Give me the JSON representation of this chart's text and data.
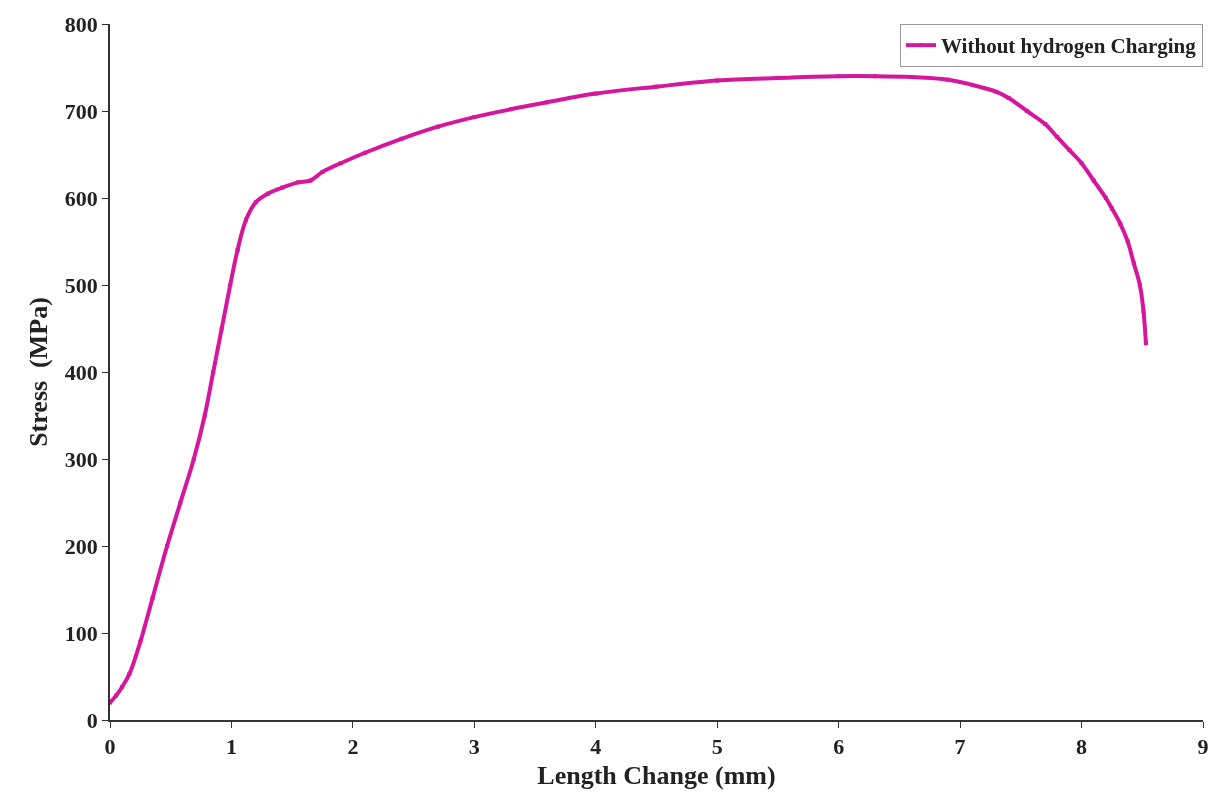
{
  "chart_data": {
    "type": "line",
    "xlabel": "Length Change (mm)",
    "ylabel": "Stress  (MPa)",
    "xlim": [
      0,
      9
    ],
    "xticks": [
      0,
      1,
      2,
      3,
      4,
      5,
      6,
      7,
      8,
      9
    ],
    "ylim": [
      0,
      800
    ],
    "yticks": [
      0,
      100,
      200,
      300,
      400,
      500,
      600,
      700,
      800
    ],
    "legend": "top right",
    "marker": "square",
    "line_style": "solid",
    "series": [
      {
        "name": "Without hydrogen Charging",
        "color": "#d4179c",
        "x": [
          0,
          0.05,
          0.1,
          0.16,
          0.25,
          0.35,
          0.47,
          0.58,
          0.69,
          0.78,
          0.85,
          0.92,
          0.99,
          1.05,
          1.12,
          1.2,
          1.3,
          1.42,
          1.55,
          1.65,
          1.75,
          1.9,
          2.1,
          2.4,
          2.7,
          3.0,
          3.3,
          3.6,
          4.0,
          4.5,
          5.0,
          5.5,
          6.0,
          6.3,
          6.6,
          6.9,
          7.1,
          7.3,
          7.4,
          7.55,
          7.7,
          7.8,
          7.9,
          8.0,
          8.1,
          8.2,
          8.25,
          8.32,
          8.38,
          8.43,
          8.48,
          8.51,
          8.53
        ],
        "values": [
          20,
          28,
          38,
          53,
          90,
          140,
          200,
          250,
          300,
          350,
          400,
          450,
          500,
          540,
          575,
          595,
          605,
          612,
          618,
          620,
          630,
          640,
          652,
          668,
          682,
          693,
          702,
          710,
          720,
          728,
          735,
          738,
          740,
          740,
          739,
          736,
          730,
          722,
          715,
          700,
          685,
          670,
          655,
          640,
          620,
          600,
          588,
          570,
          550,
          525,
          500,
          470,
          433
        ]
      }
    ]
  }
}
